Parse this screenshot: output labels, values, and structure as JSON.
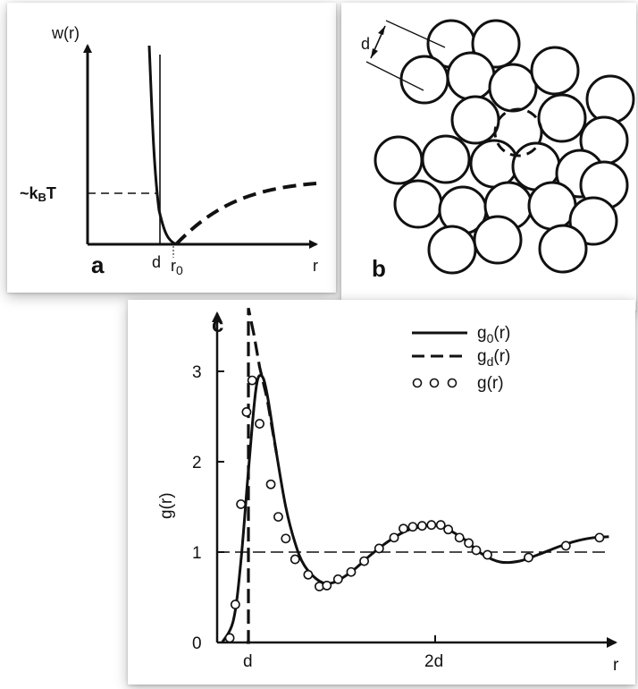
{
  "panel_a": {
    "label": "a",
    "y_axis_label": "w(r)",
    "energy_level_label": "~kBT",
    "energy_level_main": "~k",
    "energy_level_sub": "B",
    "energy_level_tail": "T",
    "x_tick_d": "d",
    "x_tick_r0_main": "r",
    "x_tick_r0_sub": "0",
    "x_axis_label": "r"
  },
  "panel_b": {
    "label": "b",
    "diameter_label": "d"
  },
  "panel_c": {
    "label": "c",
    "y_axis_label": "g(r)",
    "x_axis_label": "r",
    "legend": [
      {
        "name": "g0(r)",
        "main": "g",
        "sub": "0",
        "tail": "(r)",
        "style": "solid"
      },
      {
        "name": "gd(r)",
        "main": "g",
        "sub": "d",
        "tail": "(r)",
        "style": "dashed"
      },
      {
        "name": "g(r)",
        "main": "g(r)",
        "sub": "",
        "tail": "",
        "style": "circles"
      }
    ]
  },
  "chart_data": {
    "type": "line",
    "xlabel": "r",
    "ylabel": "g(r)",
    "x_ticks": [
      "d",
      "2d"
    ],
    "y_ticks": [
      "0",
      "1",
      "2",
      "3"
    ],
    "ylim": [
      0,
      3.7
    ],
    "xlim": [
      0.4,
      2.95
    ],
    "series": [
      {
        "name": "g0(r)",
        "style": "solid",
        "x": [
          0.86,
          0.92,
          0.96,
          1.0,
          1.04,
          1.07,
          1.1,
          1.15,
          1.2,
          1.25,
          1.3,
          1.38,
          1.45,
          1.55,
          1.65,
          1.75,
          1.85,
          1.95,
          2.0,
          2.05,
          2.15,
          2.25,
          2.35,
          2.45,
          2.55,
          2.65,
          2.75,
          2.85,
          2.93
        ],
        "y": [
          0.0,
          0.25,
          0.9,
          1.9,
          2.8,
          2.95,
          2.75,
          2.1,
          1.5,
          1.1,
          0.85,
          0.68,
          0.66,
          0.78,
          0.96,
          1.12,
          1.24,
          1.29,
          1.3,
          1.27,
          1.15,
          0.98,
          0.89,
          0.9,
          0.97,
          1.05,
          1.12,
          1.16,
          1.17
        ]
      },
      {
        "name": "gd(r)",
        "style": "dashed",
        "x": [
          0.99,
          1.0,
          1.0,
          1.03,
          1.06,
          1.1,
          1.15
        ],
        "y": [
          0.0,
          0.0,
          3.7,
          3.4,
          3.05,
          2.7,
          2.1
        ]
      },
      {
        "name": "g(r)",
        "style": "circles",
        "x": [
          0.9,
          0.93,
          0.96,
          0.99,
          1.02,
          1.06,
          1.12,
          1.16,
          1.2,
          1.25,
          1.32,
          1.38,
          1.42,
          1.48,
          1.55,
          1.62,
          1.7,
          1.78,
          1.83,
          1.88,
          1.93,
          1.98,
          2.03,
          2.07,
          2.13,
          2.18,
          2.22,
          2.28,
          2.5,
          2.7,
          2.88
        ],
        "y": [
          0.05,
          0.42,
          1.53,
          2.55,
          2.9,
          2.42,
          1.75,
          1.39,
          1.15,
          0.92,
          0.75,
          0.62,
          0.63,
          0.7,
          0.78,
          0.9,
          1.04,
          1.16,
          1.26,
          1.28,
          1.29,
          1.3,
          1.3,
          1.25,
          1.16,
          1.1,
          1.02,
          0.97,
          0.94,
          1.07,
          1.16
        ]
      },
      {
        "name": "",
        "style": "reference",
        "x": [
          0.4,
          2.95
        ],
        "y": [
          1.0,
          1.0
        ]
      }
    ]
  }
}
